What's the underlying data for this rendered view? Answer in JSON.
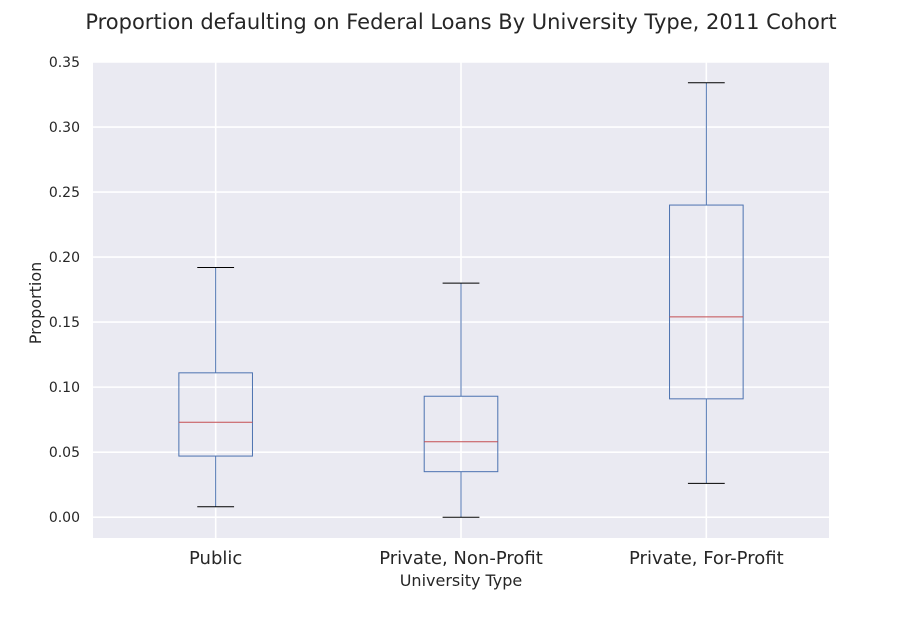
{
  "chart_data": {
    "type": "box",
    "title": "Proportion defaulting on Federal Loans By University Type, 2011 Cohort",
    "xlabel": "University Type",
    "ylabel": "Proportion",
    "ylim": [
      -0.016,
      0.35
    ],
    "yticks": [
      0.0,
      0.05,
      0.1,
      0.15,
      0.2,
      0.25,
      0.3,
      0.35
    ],
    "ytick_labels": [
      "0.00",
      "0.05",
      "0.10",
      "0.15",
      "0.20",
      "0.25",
      "0.30",
      "0.35"
    ],
    "categories": [
      "Public",
      "Private, Non-Profit",
      "Private, For-Profit"
    ],
    "boxes": [
      {
        "category": "Public",
        "whisker_low": 0.008,
        "q1": 0.047,
        "median": 0.073,
        "q3": 0.111,
        "whisker_high": 0.192
      },
      {
        "category": "Private, Non-Profit",
        "whisker_low": 0.0,
        "q1": 0.035,
        "median": 0.058,
        "q3": 0.093,
        "whisker_high": 0.18
      },
      {
        "category": "Private, For-Profit",
        "whisker_low": 0.026,
        "q1": 0.091,
        "median": 0.154,
        "q3": 0.24,
        "whisker_high": 0.334
      }
    ],
    "grid": true,
    "colors": {
      "plot_background": "#eaeaf2",
      "grid": "#ffffff",
      "box": "#4c72b0",
      "median": "#c44e52",
      "cap": "#000000"
    }
  }
}
